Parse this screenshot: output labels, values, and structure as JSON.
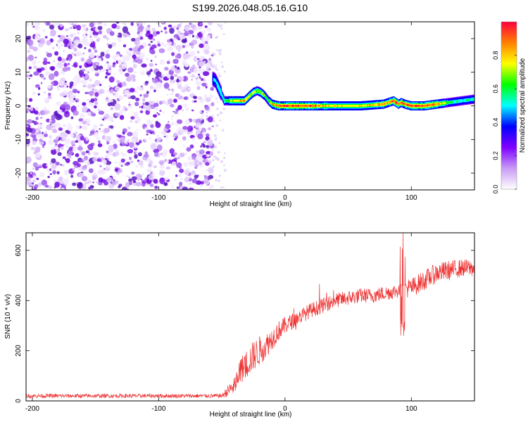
{
  "title": "S199.2026.048.05.16.G10",
  "chart_data": [
    {
      "type": "heatmap",
      "xlabel": "Height of straight line (km)",
      "ylabel": "Frequency (Hz)",
      "xlim": [
        -205,
        150
      ],
      "ylim": [
        -25,
        25
      ],
      "x_ticks": [
        {
          "value": -200,
          "label": "-200"
        },
        {
          "value": -100,
          "label": "-100"
        },
        {
          "value": 0,
          "label": "0"
        },
        {
          "value": 100,
          "label": "100"
        }
      ],
      "y_ticks": [
        {
          "value": 20,
          "label": "20"
        },
        {
          "value": 10,
          "label": "10"
        },
        {
          "value": 0,
          "label": "0"
        },
        {
          "value": -10,
          "label": "-10"
        },
        {
          "value": -20,
          "label": "-20"
        }
      ],
      "noise_region_x": [
        -205,
        -57
      ],
      "ridge": {
        "x": [
          -57,
          -55,
          -52,
          -48,
          -44,
          -40,
          -36,
          -32,
          -28,
          -25,
          -22,
          -19,
          -16,
          -13,
          -10,
          -5,
          0,
          20,
          40,
          60,
          78,
          82,
          86,
          88,
          90,
          92,
          95,
          100,
          110,
          120,
          130,
          140,
          150
        ],
        "y": [
          8,
          7.5,
          5,
          1.5,
          1.5,
          1.5,
          1.5,
          1.5,
          3,
          4,
          4.5,
          4,
          3,
          1.5,
          0.5,
          0,
          0,
          0,
          0,
          0,
          0.5,
          1,
          1.5,
          1,
          0.5,
          1,
          0.5,
          0,
          0,
          0.5,
          1,
          1.5,
          2
        ],
        "amplitude": [
          0.45,
          0.5,
          0.55,
          0.6,
          0.7,
          0.75,
          0.8,
          0.85,
          0.75,
          0.7,
          0.7,
          0.75,
          0.65,
          0.6,
          0.85,
          0.9,
          0.95,
          0.92,
          0.8,
          0.78,
          0.85,
          0.9,
          0.92,
          0.95,
          0.9,
          0.88,
          0.92,
          0.95,
          0.95,
          0.9,
          0.6,
          0.55,
          0.55
        ]
      },
      "colorbar": {
        "label": "Normalized spectral amplitude",
        "range": [
          0,
          1
        ],
        "ticks": [
          {
            "value": 0.0,
            "label": "0.0"
          },
          {
            "value": 0.2,
            "label": "0.2"
          },
          {
            "value": 0.4,
            "label": "0.4"
          },
          {
            "value": 0.6,
            "label": "0.6"
          },
          {
            "value": 0.8,
            "label": "0.8"
          }
        ],
        "colors": [
          "#ffffff",
          "#c89bf5",
          "#7f00ff",
          "#0000ff",
          "#00ffff",
          "#00ff00",
          "#ffff00",
          "#ff8000",
          "#ff0040"
        ]
      }
    },
    {
      "type": "line",
      "xlabel": "Height of straight line (km)",
      "ylabel": "SNR (10 * v/v)",
      "xlim": [
        -205,
        150
      ],
      "ylim": [
        0,
        670
      ],
      "x_ticks": [
        {
          "value": -200,
          "label": "-200"
        },
        {
          "value": -100,
          "label": "-100"
        },
        {
          "value": 0,
          "label": "0"
        },
        {
          "value": 100,
          "label": "100"
        }
      ],
      "y_ticks": [
        {
          "value": 0,
          "label": "0"
        },
        {
          "value": 200,
          "label": "200"
        },
        {
          "value": 400,
          "label": "400"
        },
        {
          "value": 600,
          "label": "600"
        }
      ],
      "series": [
        {
          "color": "#ee3333",
          "x": [
            -205,
            -180,
            -150,
            -120,
            -90,
            -60,
            -50,
            -45,
            -40,
            -35,
            -30,
            -25,
            -20,
            -15,
            -10,
            -5,
            0,
            10,
            20,
            30,
            40,
            50,
            60,
            70,
            80,
            90,
            95,
            100,
            110,
            120,
            130,
            140,
            150
          ],
          "y": [
            20,
            20,
            20,
            20,
            20,
            20,
            20,
            40,
            60,
            120,
            150,
            180,
            200,
            220,
            250,
            280,
            300,
            330,
            360,
            380,
            400,
            410,
            420,
            420,
            430,
            440,
            450,
            450,
            480,
            510,
            520,
            530,
            530
          ],
          "noise": [
            8,
            8,
            8,
            8,
            8,
            8,
            8,
            25,
            35,
            55,
            60,
            60,
            60,
            50,
            45,
            40,
            35,
            30,
            30,
            30,
            30,
            30,
            30,
            30,
            30,
            30,
            40,
            40,
            40,
            40,
            40,
            35,
            35
          ]
        }
      ]
    }
  ]
}
